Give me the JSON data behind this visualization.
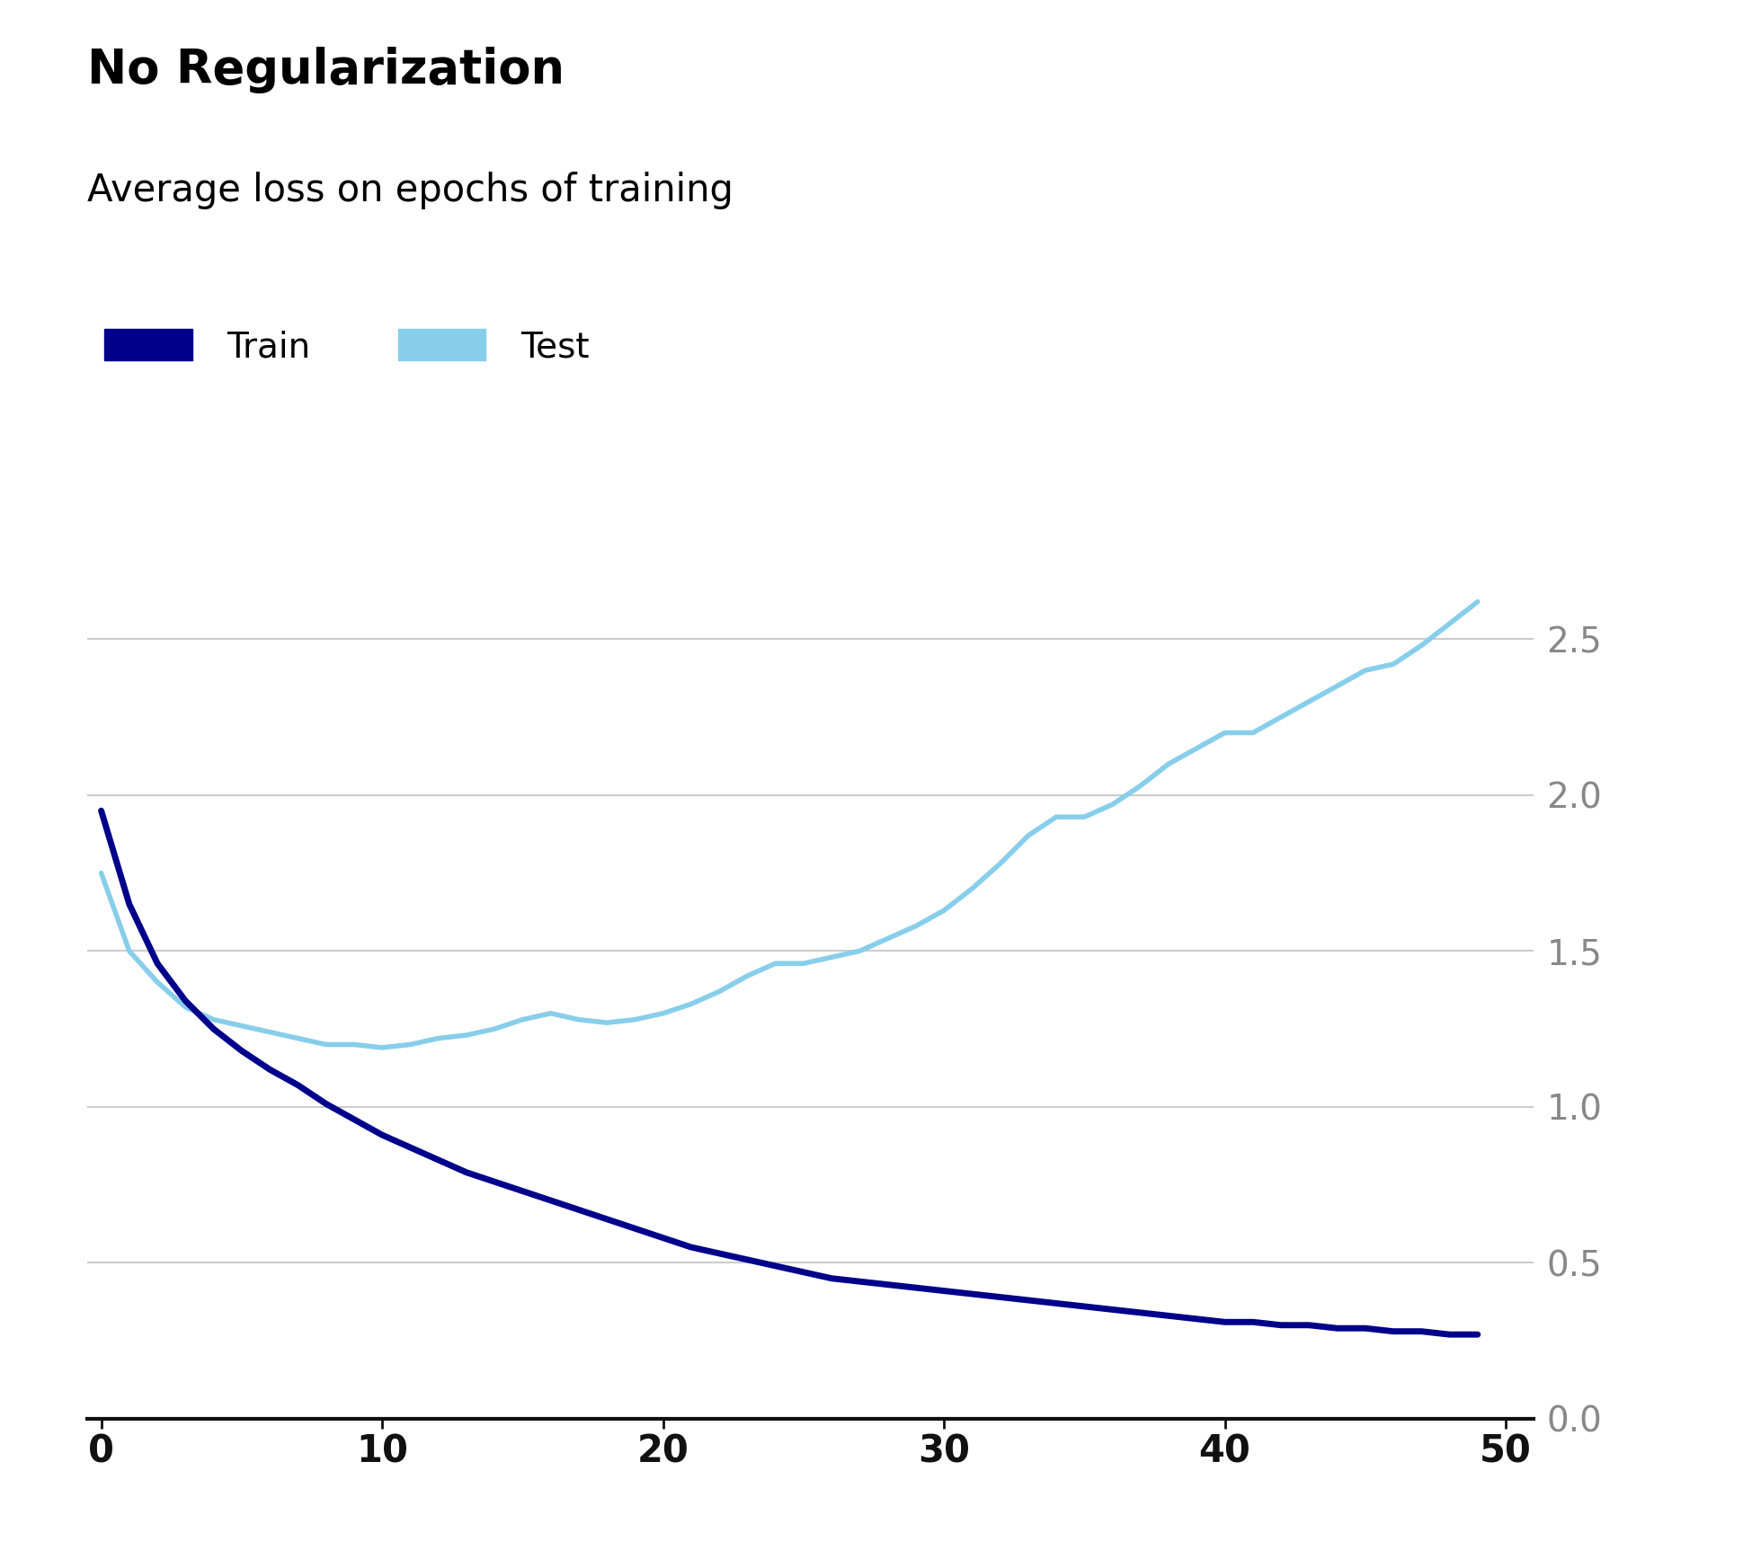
{
  "title": "No Regularization",
  "subtitle": "Average loss on epochs of training",
  "train_color": "#00008B",
  "test_color": "#87CEEB",
  "legend_labels": [
    "Train",
    "Test"
  ],
  "xlim": [
    -0.5,
    51
  ],
  "ylim": [
    0.0,
    2.8
  ],
  "yticks": [
    0.0,
    0.5,
    1.0,
    1.5,
    2.0,
    2.5
  ],
  "xticks": [
    0,
    10,
    20,
    30,
    40,
    50
  ],
  "grid_color": "#CCCCCC",
  "tick_color": "#888888",
  "background_color": "#FFFFFF",
  "title_fontsize": 38,
  "subtitle_fontsize": 30,
  "legend_fontsize": 28,
  "tick_fontsize": 28,
  "xtick_fontsize": 30,
  "train_linewidth": 5,
  "test_linewidth": 4,
  "train_x": [
    0,
    1,
    2,
    3,
    4,
    5,
    6,
    7,
    8,
    9,
    10,
    11,
    12,
    13,
    14,
    15,
    16,
    17,
    18,
    19,
    20,
    21,
    22,
    23,
    24,
    25,
    26,
    27,
    28,
    29,
    30,
    31,
    32,
    33,
    34,
    35,
    36,
    37,
    38,
    39,
    40,
    41,
    42,
    43,
    44,
    45,
    46,
    47,
    48,
    49
  ],
  "train_y": [
    1.95,
    1.65,
    1.46,
    1.34,
    1.25,
    1.18,
    1.12,
    1.07,
    1.01,
    0.96,
    0.91,
    0.87,
    0.83,
    0.79,
    0.76,
    0.73,
    0.7,
    0.67,
    0.64,
    0.61,
    0.58,
    0.55,
    0.53,
    0.51,
    0.49,
    0.47,
    0.45,
    0.44,
    0.43,
    0.42,
    0.41,
    0.4,
    0.39,
    0.38,
    0.37,
    0.36,
    0.35,
    0.34,
    0.33,
    0.32,
    0.31,
    0.31,
    0.3,
    0.3,
    0.29,
    0.29,
    0.28,
    0.28,
    0.27,
    0.27
  ],
  "test_x": [
    0,
    1,
    2,
    3,
    4,
    5,
    6,
    7,
    8,
    9,
    10,
    11,
    12,
    13,
    14,
    15,
    16,
    17,
    18,
    19,
    20,
    21,
    22,
    23,
    24,
    25,
    26,
    27,
    28,
    29,
    30,
    31,
    32,
    33,
    34,
    35,
    36,
    37,
    38,
    39,
    40,
    41,
    42,
    43,
    44,
    45,
    46,
    47,
    48,
    49
  ],
  "test_y": [
    1.75,
    1.5,
    1.4,
    1.32,
    1.28,
    1.26,
    1.24,
    1.22,
    1.2,
    1.2,
    1.19,
    1.2,
    1.22,
    1.23,
    1.25,
    1.28,
    1.3,
    1.28,
    1.27,
    1.28,
    1.3,
    1.33,
    1.37,
    1.42,
    1.46,
    1.46,
    1.48,
    1.5,
    1.54,
    1.58,
    1.63,
    1.7,
    1.78,
    1.87,
    1.93,
    1.93,
    1.97,
    2.03,
    2.1,
    2.15,
    2.2,
    2.2,
    2.25,
    2.3,
    2.35,
    2.4,
    2.42,
    2.48,
    2.55,
    2.62
  ]
}
